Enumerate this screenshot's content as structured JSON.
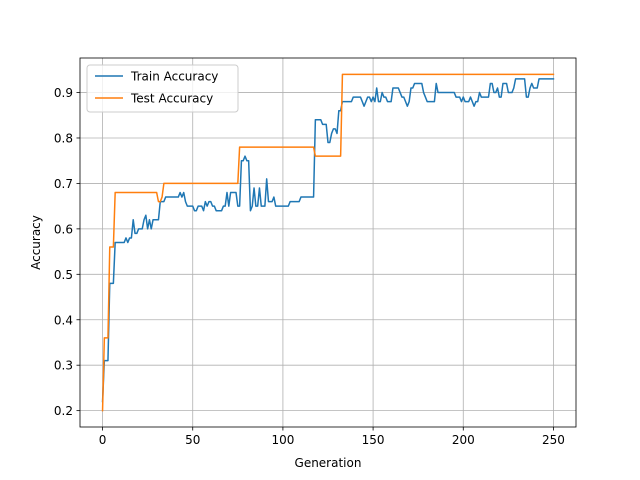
{
  "chart_data": {
    "type": "line",
    "xlabel": "Generation",
    "ylabel": "Accuracy",
    "xlim": [
      -12.5,
      262.5
    ],
    "ylim": [
      0.164,
      0.976
    ],
    "xticks": [
      0,
      50,
      100,
      150,
      200,
      250
    ],
    "yticks": [
      0.2,
      0.3,
      0.4,
      0.5,
      0.6,
      0.7,
      0.8,
      0.9
    ],
    "grid": true,
    "legend": "upper-left",
    "series": [
      {
        "name": "Train Accuracy",
        "color": "#1f77b4",
        "points": [
          [
            0,
            0.22
          ],
          [
            1,
            0.31
          ],
          [
            2,
            0.31
          ],
          [
            3,
            0.31
          ],
          [
            4,
            0.48
          ],
          [
            5,
            0.48
          ],
          [
            6,
            0.48
          ],
          [
            7,
            0.57
          ],
          [
            8,
            0.57
          ],
          [
            9,
            0.57
          ],
          [
            10,
            0.57
          ],
          [
            11,
            0.57
          ],
          [
            12,
            0.57
          ],
          [
            13,
            0.58
          ],
          [
            14,
            0.57
          ],
          [
            15,
            0.58
          ],
          [
            16,
            0.58
          ],
          [
            17,
            0.62
          ],
          [
            18,
            0.59
          ],
          [
            19,
            0.59
          ],
          [
            20,
            0.6
          ],
          [
            21,
            0.6
          ],
          [
            22,
            0.6
          ],
          [
            23,
            0.62
          ],
          [
            24,
            0.63
          ],
          [
            25,
            0.6
          ],
          [
            26,
            0.62
          ],
          [
            27,
            0.6
          ],
          [
            28,
            0.62
          ],
          [
            29,
            0.62
          ],
          [
            30,
            0.62
          ],
          [
            31,
            0.62
          ],
          [
            32,
            0.66
          ],
          [
            33,
            0.66
          ],
          [
            34,
            0.66
          ],
          [
            35,
            0.67
          ],
          [
            36,
            0.67
          ],
          [
            37,
            0.67
          ],
          [
            38,
            0.67
          ],
          [
            39,
            0.67
          ],
          [
            40,
            0.67
          ],
          [
            41,
            0.67
          ],
          [
            42,
            0.67
          ],
          [
            43,
            0.68
          ],
          [
            44,
            0.67
          ],
          [
            45,
            0.68
          ],
          [
            46,
            0.66
          ],
          [
            47,
            0.65
          ],
          [
            48,
            0.65
          ],
          [
            49,
            0.65
          ],
          [
            50,
            0.65
          ],
          [
            51,
            0.64
          ],
          [
            52,
            0.64
          ],
          [
            53,
            0.65
          ],
          [
            54,
            0.65
          ],
          [
            55,
            0.65
          ],
          [
            56,
            0.64
          ],
          [
            57,
            0.66
          ],
          [
            58,
            0.65
          ],
          [
            59,
            0.66
          ],
          [
            60,
            0.66
          ],
          [
            61,
            0.65
          ],
          [
            62,
            0.65
          ],
          [
            63,
            0.64
          ],
          [
            64,
            0.64
          ],
          [
            65,
            0.64
          ],
          [
            66,
            0.64
          ],
          [
            67,
            0.65
          ],
          [
            68,
            0.65
          ],
          [
            69,
            0.68
          ],
          [
            70,
            0.65
          ],
          [
            71,
            0.68
          ],
          [
            72,
            0.68
          ],
          [
            73,
            0.68
          ],
          [
            74,
            0.68
          ],
          [
            75,
            0.65
          ],
          [
            76,
            0.65
          ],
          [
            77,
            0.75
          ],
          [
            78,
            0.75
          ],
          [
            79,
            0.76
          ],
          [
            80,
            0.75
          ],
          [
            81,
            0.75
          ],
          [
            82,
            0.64
          ],
          [
            83,
            0.65
          ],
          [
            84,
            0.69
          ],
          [
            85,
            0.65
          ],
          [
            86,
            0.65
          ],
          [
            87,
            0.69
          ],
          [
            88,
            0.65
          ],
          [
            89,
            0.65
          ],
          [
            90,
            0.65
          ],
          [
            91,
            0.71
          ],
          [
            92,
            0.66
          ],
          [
            93,
            0.66
          ],
          [
            94,
            0.66
          ],
          [
            95,
            0.67
          ],
          [
            96,
            0.65
          ],
          [
            97,
            0.65
          ],
          [
            98,
            0.65
          ],
          [
            99,
            0.65
          ],
          [
            100,
            0.65
          ],
          [
            101,
            0.65
          ],
          [
            102,
            0.65
          ],
          [
            103,
            0.65
          ],
          [
            104,
            0.66
          ],
          [
            105,
            0.66
          ],
          [
            106,
            0.66
          ],
          [
            107,
            0.66
          ],
          [
            108,
            0.66
          ],
          [
            109,
            0.66
          ],
          [
            110,
            0.67
          ],
          [
            111,
            0.67
          ],
          [
            112,
            0.67
          ],
          [
            113,
            0.67
          ],
          [
            114,
            0.67
          ],
          [
            115,
            0.67
          ],
          [
            116,
            0.67
          ],
          [
            117,
            0.67
          ],
          [
            118,
            0.84
          ],
          [
            119,
            0.84
          ],
          [
            120,
            0.84
          ],
          [
            121,
            0.84
          ],
          [
            122,
            0.83
          ],
          [
            123,
            0.83
          ],
          [
            124,
            0.83
          ],
          [
            125,
            0.79
          ],
          [
            126,
            0.79
          ],
          [
            127,
            0.81
          ],
          [
            128,
            0.82
          ],
          [
            129,
            0.82
          ],
          [
            130,
            0.81
          ],
          [
            131,
            0.86
          ],
          [
            132,
            0.86
          ],
          [
            133,
            0.88
          ],
          [
            134,
            0.88
          ],
          [
            135,
            0.88
          ],
          [
            136,
            0.88
          ],
          [
            137,
            0.88
          ],
          [
            138,
            0.88
          ],
          [
            139,
            0.89
          ],
          [
            140,
            0.89
          ],
          [
            141,
            0.89
          ],
          [
            142,
            0.89
          ],
          [
            143,
            0.89
          ],
          [
            144,
            0.88
          ],
          [
            145,
            0.87
          ],
          [
            146,
            0.88
          ],
          [
            147,
            0.89
          ],
          [
            148,
            0.89
          ],
          [
            149,
            0.88
          ],
          [
            150,
            0.89
          ],
          [
            151,
            0.88
          ],
          [
            152,
            0.91
          ],
          [
            153,
            0.88
          ],
          [
            154,
            0.88
          ],
          [
            155,
            0.9
          ],
          [
            156,
            0.89
          ],
          [
            157,
            0.89
          ],
          [
            158,
            0.88
          ],
          [
            159,
            0.88
          ],
          [
            160,
            0.88
          ],
          [
            161,
            0.91
          ],
          [
            162,
            0.91
          ],
          [
            163,
            0.91
          ],
          [
            164,
            0.91
          ],
          [
            165,
            0.9
          ],
          [
            166,
            0.89
          ],
          [
            167,
            0.89
          ],
          [
            168,
            0.88
          ],
          [
            169,
            0.87
          ],
          [
            170,
            0.88
          ],
          [
            171,
            0.91
          ],
          [
            172,
            0.91
          ],
          [
            173,
            0.92
          ],
          [
            174,
            0.92
          ],
          [
            175,
            0.92
          ],
          [
            176,
            0.92
          ],
          [
            177,
            0.92
          ],
          [
            178,
            0.9
          ],
          [
            179,
            0.89
          ],
          [
            180,
            0.88
          ],
          [
            181,
            0.88
          ],
          [
            182,
            0.88
          ],
          [
            183,
            0.88
          ],
          [
            184,
            0.88
          ],
          [
            185,
            0.92
          ],
          [
            186,
            0.9
          ],
          [
            187,
            0.9
          ],
          [
            188,
            0.9
          ],
          [
            189,
            0.9
          ],
          [
            190,
            0.9
          ],
          [
            191,
            0.9
          ],
          [
            192,
            0.9
          ],
          [
            193,
            0.9
          ],
          [
            194,
            0.9
          ],
          [
            195,
            0.9
          ],
          [
            196,
            0.89
          ],
          [
            197,
            0.89
          ],
          [
            198,
            0.89
          ],
          [
            199,
            0.88
          ],
          [
            200,
            0.89
          ],
          [
            201,
            0.88
          ],
          [
            202,
            0.88
          ],
          [
            203,
            0.88
          ],
          [
            204,
            0.89
          ],
          [
            205,
            0.88
          ],
          [
            206,
            0.87
          ],
          [
            207,
            0.88
          ],
          [
            208,
            0.88
          ],
          [
            209,
            0.9
          ],
          [
            210,
            0.89
          ],
          [
            211,
            0.89
          ],
          [
            212,
            0.89
          ],
          [
            213,
            0.89
          ],
          [
            214,
            0.89
          ],
          [
            215,
            0.92
          ],
          [
            216,
            0.92
          ],
          [
            217,
            0.9
          ],
          [
            218,
            0.9
          ],
          [
            219,
            0.91
          ],
          [
            220,
            0.89
          ],
          [
            221,
            0.89
          ],
          [
            222,
            0.92
          ],
          [
            223,
            0.92
          ],
          [
            224,
            0.92
          ],
          [
            225,
            0.9
          ],
          [
            226,
            0.9
          ],
          [
            227,
            0.9
          ],
          [
            228,
            0.91
          ],
          [
            229,
            0.93
          ],
          [
            230,
            0.93
          ],
          [
            231,
            0.93
          ],
          [
            232,
            0.93
          ],
          [
            233,
            0.93
          ],
          [
            234,
            0.93
          ],
          [
            235,
            0.89
          ],
          [
            236,
            0.89
          ],
          [
            237,
            0.91
          ],
          [
            238,
            0.92
          ],
          [
            239,
            0.91
          ],
          [
            240,
            0.91
          ],
          [
            241,
            0.91
          ],
          [
            242,
            0.93
          ],
          [
            243,
            0.93
          ],
          [
            244,
            0.93
          ],
          [
            245,
            0.93
          ],
          [
            246,
            0.93
          ],
          [
            247,
            0.93
          ],
          [
            248,
            0.93
          ],
          [
            249,
            0.93
          ],
          [
            250,
            0.93
          ]
        ]
      },
      {
        "name": "Test Accuracy",
        "color": "#ff7f0e",
        "points": [
          [
            0,
            0.2
          ],
          [
            1,
            0.36
          ],
          [
            2,
            0.36
          ],
          [
            3,
            0.36
          ],
          [
            4,
            0.56
          ],
          [
            5,
            0.56
          ],
          [
            6,
            0.56
          ],
          [
            7,
            0.68
          ],
          [
            8,
            0.68
          ],
          [
            9,
            0.68
          ],
          [
            29,
            0.68
          ],
          [
            30,
            0.68
          ],
          [
            31,
            0.66
          ],
          [
            32,
            0.66
          ],
          [
            33,
            0.67
          ],
          [
            34,
            0.7
          ],
          [
            35,
            0.7
          ],
          [
            75,
            0.7
          ],
          [
            76,
            0.78
          ],
          [
            77,
            0.78
          ],
          [
            117,
            0.78
          ],
          [
            118,
            0.76
          ],
          [
            119,
            0.76
          ],
          [
            132,
            0.76
          ],
          [
            133,
            0.94
          ],
          [
            134,
            0.94
          ],
          [
            250,
            0.94
          ]
        ]
      }
    ]
  }
}
